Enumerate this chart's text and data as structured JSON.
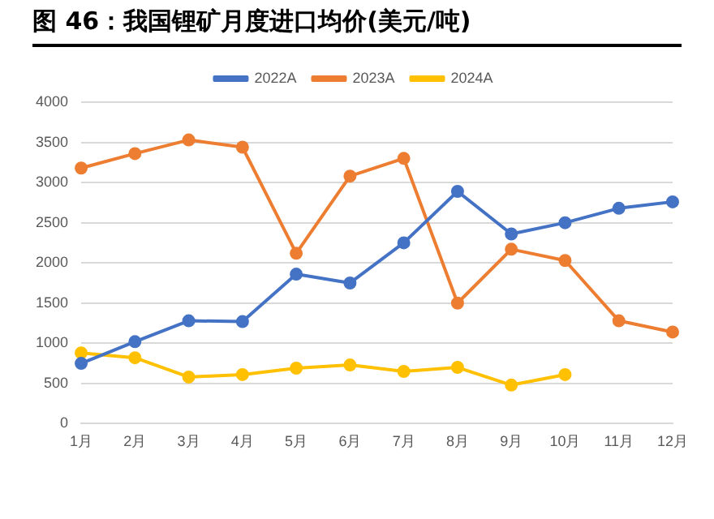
{
  "chart_data": {
    "type": "line",
    "title": "图 46：我国锂矿月度进口均价(美元/吨)",
    "categories": [
      "1月",
      "2月",
      "3月",
      "4月",
      "5月",
      "6月",
      "7月",
      "8月",
      "9月",
      "10月",
      "11月",
      "12月"
    ],
    "series": [
      {
        "name": "2022A",
        "color": "#4472c4",
        "values": [
          750,
          1020,
          1280,
          1270,
          1860,
          1750,
          2250,
          2890,
          2360,
          2500,
          2680,
          2760
        ]
      },
      {
        "name": "2023A",
        "color": "#ed7d31",
        "values": [
          3180,
          3360,
          3530,
          3440,
          2120,
          3080,
          3300,
          1500,
          2170,
          2030,
          1280,
          1140
        ]
      },
      {
        "name": "2024A",
        "color": "#ffc000",
        "values": [
          880,
          820,
          580,
          610,
          690,
          730,
          650,
          700,
          480,
          610,
          null,
          null
        ]
      }
    ],
    "ylim": [
      0,
      4000
    ],
    "yticks": [
      0,
      500,
      1000,
      1500,
      2000,
      2500,
      3000,
      3500,
      4000
    ],
    "grid": "y",
    "legend": "top",
    "marker": "circle",
    "line_style": "solid"
  }
}
